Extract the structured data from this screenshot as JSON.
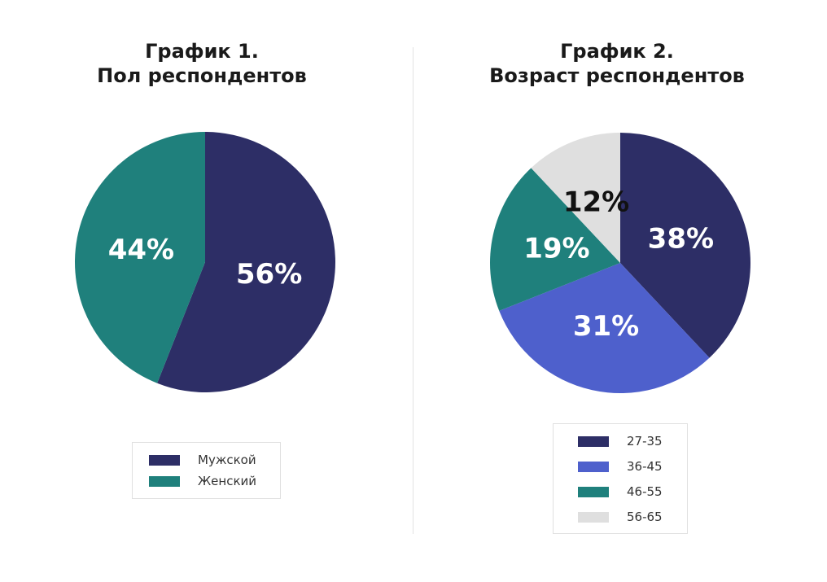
{
  "chart_data": [
    {
      "type": "pie",
      "title": [
        "График 1.",
        "Пол респондентов"
      ],
      "categories": [
        "Мужской",
        "Женский"
      ],
      "values": [
        56,
        44
      ],
      "value_labels": [
        "56%",
        "44%"
      ],
      "colors": [
        "#2d2e66",
        "#1f807c"
      ],
      "label_colors": [
        "#ffffff",
        "#ffffff"
      ],
      "legend_position": "bottom"
    },
    {
      "type": "pie",
      "title": [
        "График 2.",
        "Возраст респондентов"
      ],
      "categories": [
        "27-35",
        "36-45",
        "46-55",
        "56-65"
      ],
      "values": [
        38,
        31,
        19,
        12
      ],
      "value_labels": [
        "38%",
        "31%",
        "19%",
        "12%"
      ],
      "colors": [
        "#2d2e66",
        "#4e60cc",
        "#1f807c",
        "#dfdfdf"
      ],
      "label_colors": [
        "#ffffff",
        "#ffffff",
        "#ffffff",
        "#111111"
      ],
      "legend_position": "bottom"
    }
  ]
}
